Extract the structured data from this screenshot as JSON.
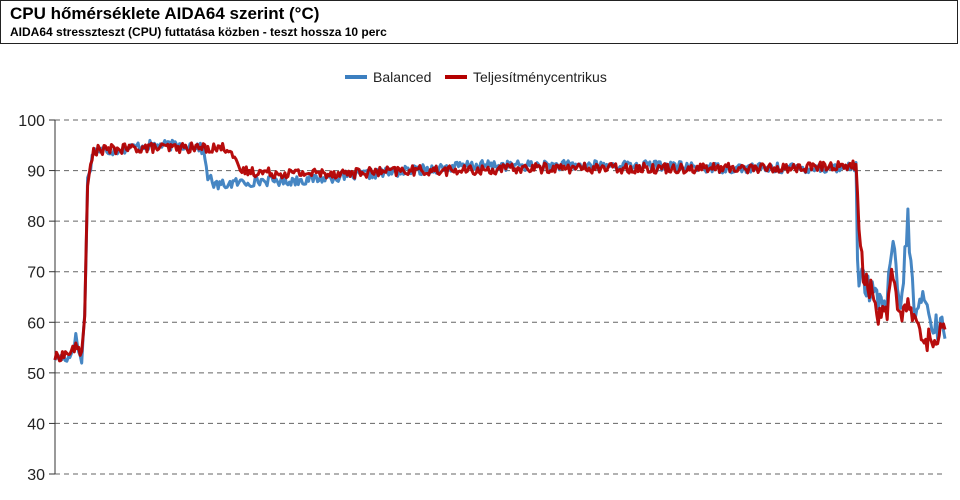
{
  "header": {
    "title": "CPU hőmérséklete AIDA64 szerint (°C)",
    "subtitle": "AIDA64 stresszteszt (CPU) futtatása közben - teszt hossza 10 perc"
  },
  "chart_data": {
    "type": "line",
    "title": "CPU hőmérséklete AIDA64 szerint (°C)",
    "subtitle": "AIDA64 stresszteszt (CPU) futtatása közben - teszt hossza 10 perc",
    "xlabel": "",
    "ylabel": "",
    "ylim": [
      30,
      100
    ],
    "yticks": [
      100,
      90,
      80,
      70,
      60,
      50,
      40,
      30
    ],
    "grid": true,
    "legend": "top-center",
    "x_samples": 600,
    "series": [
      {
        "name": "Balanced",
        "color": "#3c7fc0",
        "keypoints": [
          [
            0,
            53
          ],
          [
            10,
            53
          ],
          [
            14,
            57
          ],
          [
            18,
            52
          ],
          [
            20,
            62
          ],
          [
            22,
            88
          ],
          [
            26,
            94
          ],
          [
            40,
            94
          ],
          [
            60,
            95
          ],
          [
            80,
            95
          ],
          [
            95,
            95
          ],
          [
            100,
            94
          ],
          [
            103,
            89
          ],
          [
            108,
            87
          ],
          [
            120,
            87.5
          ],
          [
            140,
            88
          ],
          [
            160,
            88
          ],
          [
            180,
            88.5
          ],
          [
            200,
            89
          ],
          [
            220,
            89.5
          ],
          [
            240,
            90
          ],
          [
            260,
            90.5
          ],
          [
            280,
            91
          ],
          [
            300,
            91
          ],
          [
            330,
            91
          ],
          [
            360,
            91
          ],
          [
            400,
            91
          ],
          [
            450,
            90.5
          ],
          [
            500,
            90.5
          ],
          [
            530,
            90.5
          ],
          [
            540,
            91
          ],
          [
            541,
            70
          ],
          [
            545,
            68
          ],
          [
            550,
            66
          ],
          [
            555,
            64
          ],
          [
            560,
            63
          ],
          [
            565,
            75
          ],
          [
            570,
            62
          ],
          [
            575,
            80
          ],
          [
            580,
            60
          ],
          [
            585,
            66
          ],
          [
            590,
            60
          ],
          [
            595,
            59
          ],
          [
            600,
            59
          ]
        ]
      },
      {
        "name": "Teljesítménycentrikus",
        "color": "#b40000",
        "keypoints": [
          [
            0,
            53
          ],
          [
            10,
            54
          ],
          [
            14,
            55
          ],
          [
            18,
            54
          ],
          [
            20,
            62
          ],
          [
            22,
            87
          ],
          [
            26,
            94
          ],
          [
            60,
            94.5
          ],
          [
            100,
            94.5
          ],
          [
            118,
            94.5
          ],
          [
            121,
            92
          ],
          [
            124,
            90
          ],
          [
            150,
            89.5
          ],
          [
            180,
            89.5
          ],
          [
            200,
            89.5
          ],
          [
            240,
            90
          ],
          [
            280,
            90
          ],
          [
            320,
            90.5
          ],
          [
            360,
            90.5
          ],
          [
            400,
            90.5
          ],
          [
            450,
            90.5
          ],
          [
            500,
            90.5
          ],
          [
            530,
            91
          ],
          [
            540,
            91
          ],
          [
            542,
            78
          ],
          [
            545,
            70
          ],
          [
            550,
            66
          ],
          [
            555,
            62
          ],
          [
            560,
            61
          ],
          [
            565,
            70
          ],
          [
            570,
            60
          ],
          [
            575,
            64
          ],
          [
            580,
            59
          ],
          [
            585,
            58
          ],
          [
            590,
            56
          ],
          [
            594,
            56
          ],
          [
            598,
            60
          ],
          [
            600,
            61
          ]
        ]
      }
    ]
  }
}
